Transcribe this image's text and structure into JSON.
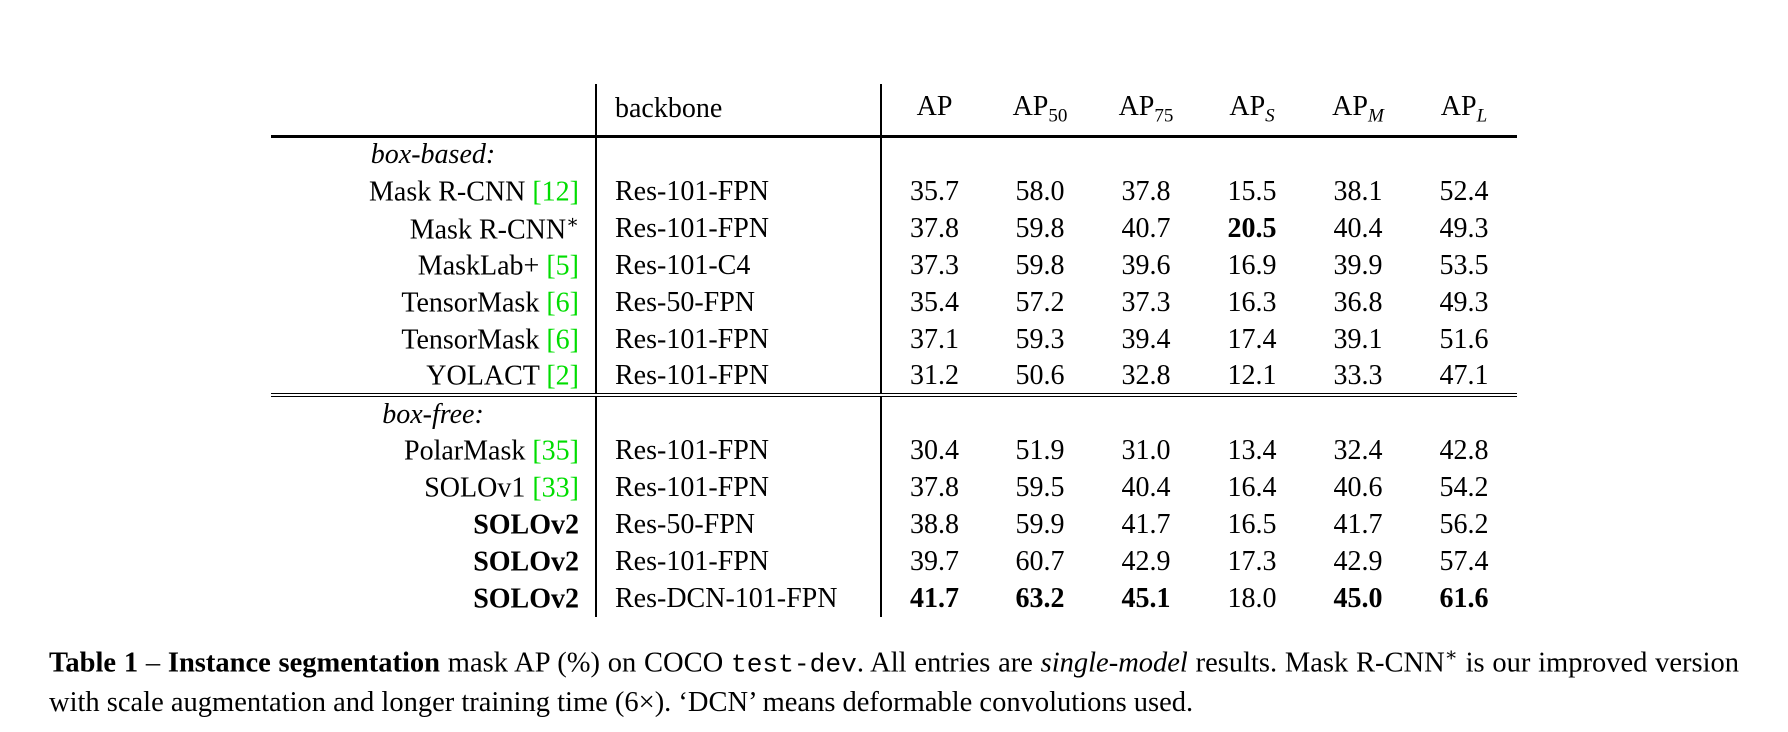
{
  "colors": {
    "citation_green": "#00dd00",
    "text": "#000000",
    "background": "#ffffff"
  },
  "table": {
    "header": {
      "backbone": "backbone",
      "metrics": [
        {
          "base": "AP",
          "sub": ""
        },
        {
          "base": "AP",
          "sub": "50"
        },
        {
          "base": "AP",
          "sub": "75"
        },
        {
          "base": "AP",
          "sub": "S"
        },
        {
          "base": "AP",
          "sub": "M"
        },
        {
          "base": "AP",
          "sub": "L"
        }
      ]
    },
    "sections": [
      {
        "label": "box-based:",
        "rows": [
          {
            "method": "Mask R-CNN ",
            "cite": "[12]",
            "sup": "",
            "backbone": "Res-101-FPN",
            "vals": [
              "35.7",
              "58.0",
              "37.8",
              "15.5",
              "38.1",
              "52.4"
            ]
          },
          {
            "method": "Mask R-CNN",
            "cite": "",
            "sup": "∗",
            "backbone": "Res-101-FPN",
            "vals": [
              "37.8",
              "59.8",
              "40.7",
              "20.5",
              "40.4",
              "49.3"
            ]
          },
          {
            "method": "MaskLab+ ",
            "cite": "[5]",
            "sup": "",
            "backbone": "Res-101-C4",
            "vals": [
              "37.3",
              "59.8",
              "39.6",
              "16.9",
              "39.9",
              "53.5"
            ]
          },
          {
            "method": "TensorMask ",
            "cite": "[6]",
            "sup": "",
            "backbone": "Res-50-FPN",
            "vals": [
              "35.4",
              "57.2",
              "37.3",
              "16.3",
              "36.8",
              "49.3"
            ]
          },
          {
            "method": "TensorMask ",
            "cite": "[6]",
            "sup": "",
            "backbone": "Res-101-FPN",
            "vals": [
              "37.1",
              "59.3",
              "39.4",
              "17.4",
              "39.1",
              "51.6"
            ]
          },
          {
            "method": "YOLACT ",
            "cite": "[2]",
            "sup": "",
            "backbone": "Res-101-FPN",
            "vals": [
              "31.2",
              "50.6",
              "32.8",
              "12.1",
              "33.3",
              "47.1"
            ]
          }
        ]
      },
      {
        "label": "box-free:",
        "rows": [
          {
            "method": "PolarMask ",
            "cite": "[35]",
            "sup": "",
            "backbone": "Res-101-FPN",
            "vals": [
              "30.4",
              "51.9",
              "31.0",
              "13.4",
              "32.4",
              "42.8"
            ]
          },
          {
            "method": "SOLOv1 ",
            "cite": "[33]",
            "sup": "",
            "backbone": "Res-101-FPN",
            "vals": [
              "37.8",
              "59.5",
              "40.4",
              "16.4",
              "40.6",
              "54.2"
            ]
          },
          {
            "method": "SOLOv2",
            "cite": "",
            "sup": "",
            "backbone": "Res-50-FPN",
            "vals": [
              "38.8",
              "59.9",
              "41.7",
              "16.5",
              "41.7",
              "56.2"
            ]
          },
          {
            "method": "SOLOv2",
            "cite": "",
            "sup": "",
            "backbone": "Res-101-FPN",
            "vals": [
              "39.7",
              "60.7",
              "42.9",
              "17.3",
              "42.9",
              "57.4"
            ]
          },
          {
            "method": "SOLOv2",
            "cite": "",
            "sup": "",
            "backbone": "Res-DCN-101-FPN",
            "vals": [
              "41.7",
              "63.2",
              "45.1",
              "18.0",
              "45.0",
              "61.6"
            ]
          }
        ]
      }
    ]
  },
  "caption": {
    "label": "Table 1 ",
    "dash": "– ",
    "title": "Instance segmentation",
    "text_1": " mask AP (%) on COCO ",
    "code": "test-dev",
    "text_2": ". All entries are ",
    "italic_1": "single-model",
    "text_3": " results. Mask R-CNN",
    "sup": "∗",
    "text_4": " is our improved version with scale augmentation and longer training time (6×). ‘DCN’ means deformable convolutions used."
  }
}
